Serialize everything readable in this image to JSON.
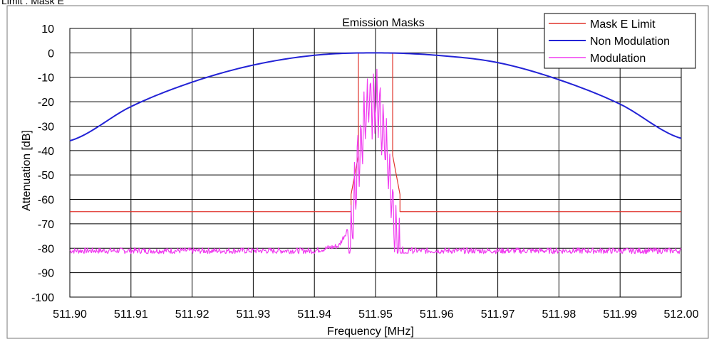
{
  "page_caption": "Limit : Mask E",
  "colors": {
    "mask": "#e0342c",
    "non_modulation": "#2323d6",
    "modulation": "#f03cf0",
    "grid": "#000000",
    "background": "#ffffff"
  },
  "chart_data": {
    "type": "line",
    "title": "Emission Masks",
    "xlabel": "Frequency [MHz]",
    "ylabel": "Attenuation [dB]",
    "xlim": [
      511.9,
      512.0
    ],
    "ylim": [
      -100,
      10
    ],
    "x_ticks": [
      511.9,
      511.91,
      511.92,
      511.93,
      511.94,
      511.95,
      511.96,
      511.97,
      511.98,
      511.99,
      512.0
    ],
    "x_tick_labels": [
      "511.90",
      "511.91",
      "511.92",
      "511.93",
      "511.94",
      "511.95",
      "511.96",
      "511.97",
      "511.98",
      "511.99",
      "512.00"
    ],
    "y_ticks": [
      10,
      0,
      -10,
      -20,
      -30,
      -40,
      -50,
      -60,
      -70,
      -80,
      -90,
      -100
    ],
    "y_tick_labels": [
      "10",
      "0",
      "-10",
      "-20",
      "-30",
      "-40",
      "-50",
      "-60",
      "-70",
      "-80",
      "-90",
      "-100"
    ],
    "grid": true,
    "legend_position": "top-right",
    "series": [
      {
        "name": "Mask E Limit",
        "color": "#e0342c",
        "x": [
          511.9,
          511.946,
          511.946,
          511.9472,
          511.9472,
          511.9528,
          511.9528,
          511.954,
          511.954,
          512.0
        ],
        "y": [
          -65,
          -65,
          -58,
          -42,
          0,
          0,
          -42,
          -58,
          -65,
          -65
        ]
      },
      {
        "name": "Non Modulation",
        "color": "#2323d6",
        "x": [
          511.9,
          511.91,
          511.92,
          511.93,
          511.94,
          511.95,
          511.96,
          511.97,
          511.98,
          511.99,
          512.0
        ],
        "y": [
          -36,
          -22,
          -12,
          -5,
          -1,
          0,
          -1,
          -4,
          -11,
          -21,
          -35
        ]
      },
      {
        "name": "Modulation",
        "color": "#f03cf0",
        "x": [
          511.9,
          511.94,
          511.944,
          511.9455,
          511.9462,
          511.947,
          511.9478,
          511.9484,
          511.949,
          511.9496,
          511.9502,
          511.9508,
          511.9514,
          511.952,
          511.9526,
          511.9532,
          511.954,
          511.9548,
          511.9555,
          511.956,
          511.96,
          512.0
        ],
        "y": [
          -81,
          -81,
          -79,
          -72,
          -55,
          -30,
          -20,
          -10,
          -5,
          -6,
          -5,
          -10,
          -20,
          -30,
          -45,
          -57,
          -68,
          -77,
          -80,
          -81,
          -81,
          -81
        ]
      }
    ]
  }
}
